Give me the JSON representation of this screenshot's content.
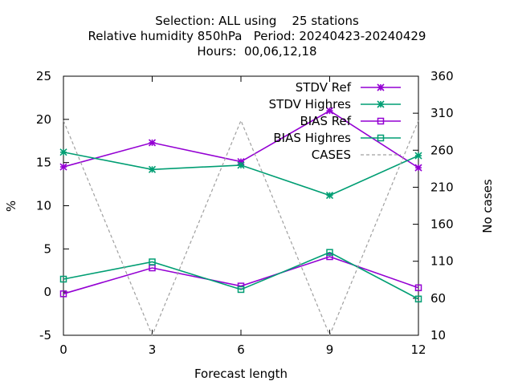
{
  "title": {
    "line1": "Selection: ALL using    25 stations",
    "line2": "Relative humidity 850hPa   Period: 20240423-20240429",
    "line3": "Hours:  00,06,12,18"
  },
  "chart_data": {
    "type": "line",
    "xlabel": "Forecast length",
    "ylabel": "%",
    "y2label": "No cases",
    "x": [
      0,
      3,
      6,
      9,
      12
    ],
    "xlim": [
      0,
      12
    ],
    "ylim": [
      -5,
      25
    ],
    "y2lim": [
      10,
      360
    ],
    "x_ticks": [
      0,
      3,
      6,
      9,
      12
    ],
    "y_ticks": [
      -5,
      0,
      5,
      10,
      15,
      20,
      25
    ],
    "y2_ticks": [
      10,
      60,
      110,
      160,
      210,
      260,
      310,
      360
    ],
    "grid": false,
    "legend_position": "top-right",
    "series": [
      {
        "name": "STDV Ref",
        "axis": "y",
        "color": "#9400d3",
        "marker": "x",
        "dash": false,
        "values": [
          14.5,
          17.3,
          15.1,
          21.0,
          14.4
        ]
      },
      {
        "name": "STDV Highres",
        "axis": "y",
        "color": "#009e73",
        "marker": "x",
        "dash": false,
        "values": [
          16.2,
          14.2,
          14.7,
          11.2,
          15.8
        ]
      },
      {
        "name": "BIAS Ref",
        "axis": "y",
        "color": "#9400d3",
        "marker": "square",
        "dash": false,
        "values": [
          -0.2,
          2.8,
          0.7,
          4.1,
          0.5
        ]
      },
      {
        "name": "BIAS Highres",
        "axis": "y",
        "color": "#009e73",
        "marker": "square",
        "dash": false,
        "values": [
          1.5,
          3.5,
          0.3,
          4.6,
          -0.8
        ]
      },
      {
        "name": "CASES",
        "axis": "y2",
        "color": "#a0a0a0",
        "marker": "none",
        "dash": true,
        "values": [
          300,
          10,
          300,
          10,
          300
        ]
      }
    ]
  }
}
